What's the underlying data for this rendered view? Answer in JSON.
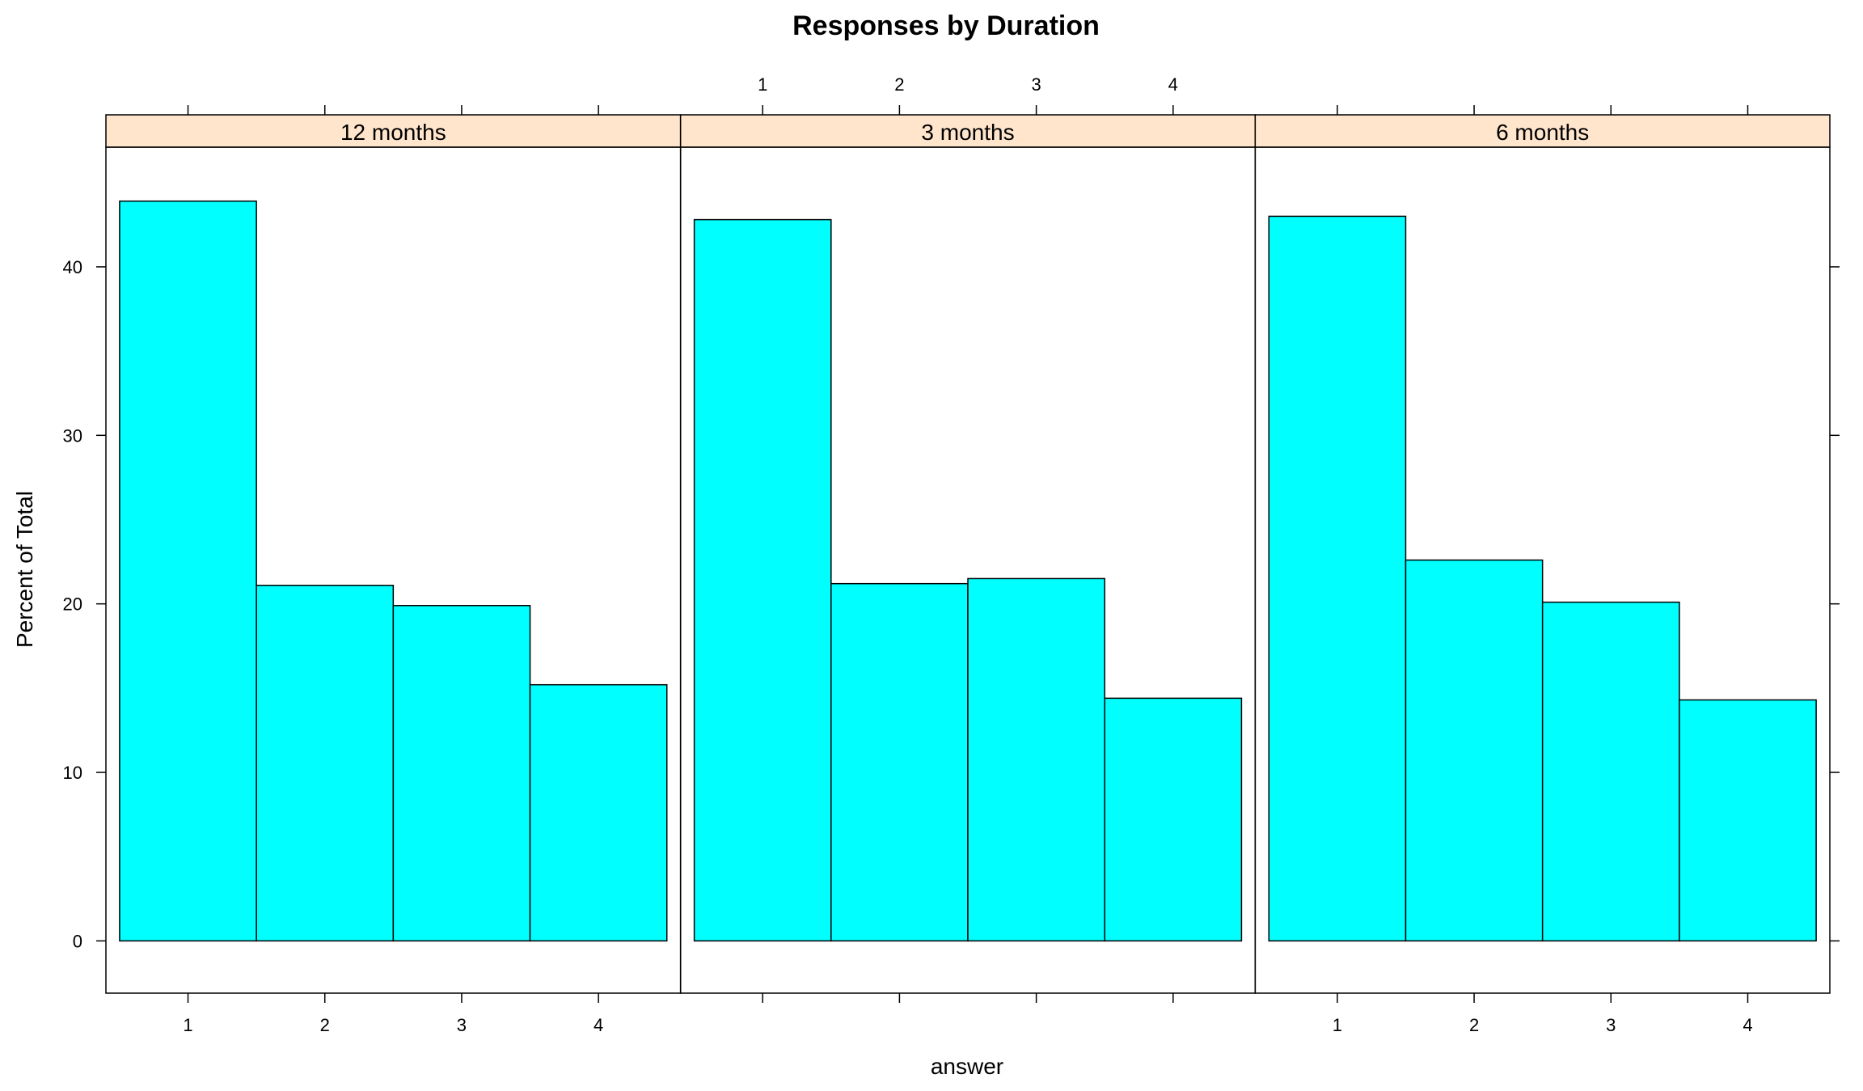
{
  "chart_data": {
    "type": "bar",
    "title": "Responses by Duration",
    "xlabel": "answer",
    "ylabel": "Percent of Total",
    "categories": [
      "1",
      "2",
      "3",
      "4"
    ],
    "yticks": [
      "0",
      "10",
      "20",
      "30",
      "40"
    ],
    "ylim": [
      -3.1,
      47.1
    ],
    "grid": false,
    "legend": "none",
    "bar_color": "#00FFFF",
    "strip_color": "#FFE5CC",
    "panels": [
      {
        "label": "12 months",
        "values": [
          43.9,
          21.1,
          19.9,
          15.2
        ]
      },
      {
        "label": "3 months",
        "values": [
          42.8,
          21.2,
          21.5,
          14.4
        ]
      },
      {
        "label": "6 months",
        "values": [
          43.0,
          22.6,
          20.1,
          14.3
        ]
      }
    ]
  }
}
